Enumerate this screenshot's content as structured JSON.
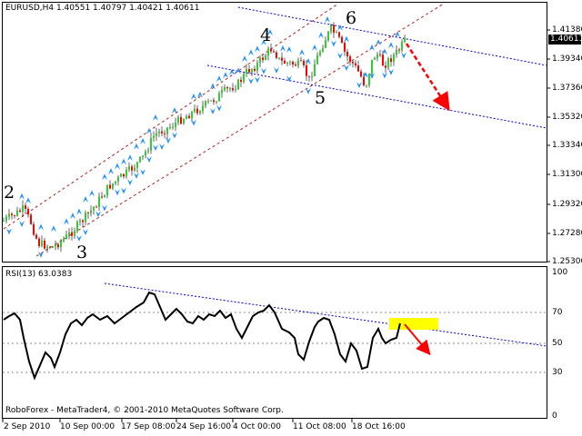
{
  "header": {
    "symbol_info": "EURUSD,H4  1.40551 1.40797 1.40421 1.40611",
    "rsi_info": "RSI(13) 63.0383",
    "copyright": "RoboForex - MetaTrader4, © 2001-2010 MetaQuotes Software Corp."
  },
  "price_axis": {
    "levels": [
      "1.41380",
      "1.39340",
      "1.37360",
      "1.35320",
      "1.33340",
      "1.31300",
      "1.29320",
      "1.27280",
      "1.25300"
    ],
    "current_price": "1.40611"
  },
  "rsi_axis": {
    "levels": [
      "100",
      "70",
      "50",
      "30",
      "0"
    ]
  },
  "time_axis": {
    "labels": [
      "2 Sep 2010",
      "10 Sep 00:00",
      "17 Sep 08:00",
      "24 Sep 16:00",
      "4 Oct 00:00",
      "11 Oct 08:00",
      "18 Oct 16:00"
    ]
  },
  "wave_labels": [
    "2",
    "3",
    "4",
    "5",
    "6"
  ],
  "colors": {
    "bull_candle": "#32cd32",
    "bear_candle": "#ff0000",
    "fractal": "#1e90ff",
    "channel": "#b22222",
    "trendline": "#0000cd",
    "forecast_arrow": "#ff0000",
    "rsi_line": "#000000",
    "rsi_highlight": "#ffff00"
  }
}
